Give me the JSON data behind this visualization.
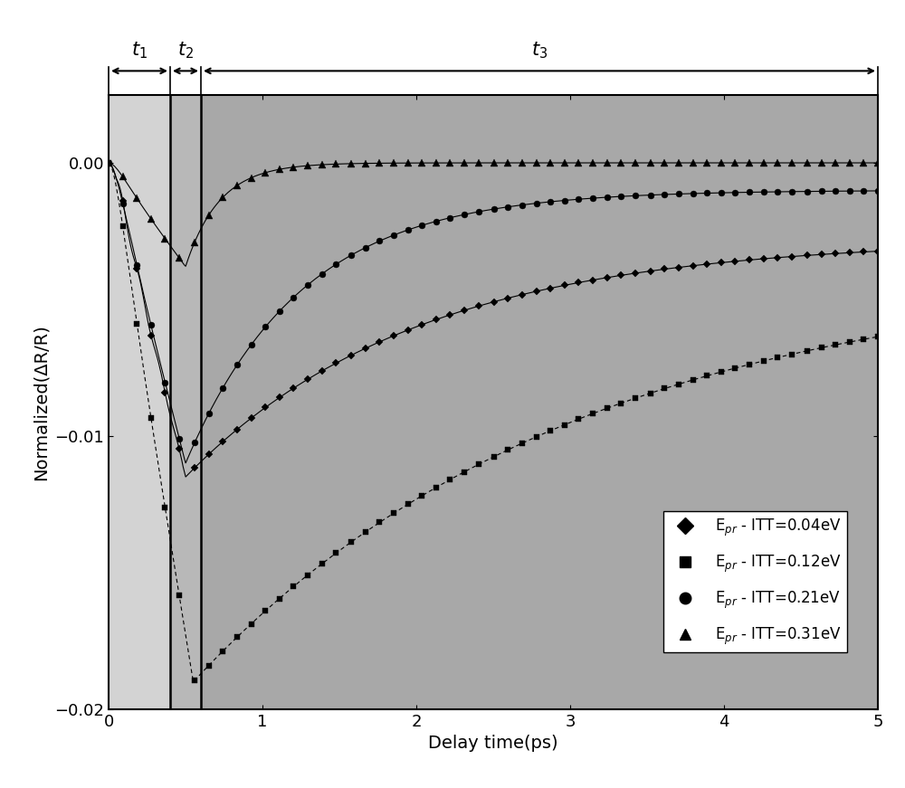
{
  "xlabel": "Delay time(ps)",
  "ylabel": "Normalized(ΔR/R)",
  "xlim": [
    0,
    5
  ],
  "ylim": [
    -0.02,
    0.0025
  ],
  "yticks": [
    -0.02,
    -0.01,
    0.0
  ],
  "xticks": [
    0,
    1,
    2,
    3,
    4,
    5
  ],
  "bg_region1": [
    0,
    0.4
  ],
  "bg_region2": [
    0.4,
    0.6
  ],
  "bg_region3": [
    0.6,
    5.0
  ],
  "bg_color1": "#d3d3d3",
  "bg_color2": "#b8b8b8",
  "bg_color3": "#a8a8a8",
  "vline1_x": 0.4,
  "vline2_x": 0.6,
  "legend_labels": [
    "E$_{pr}$ - ITT=0.04eV",
    "E$_{pr}$ - ITT=0.12eV",
    "E$_{pr}$ - ITT=0.21eV",
    "E$_{pr}$ - ITT=0.31eV"
  ],
  "marker_size": 5,
  "n_markers": 55
}
